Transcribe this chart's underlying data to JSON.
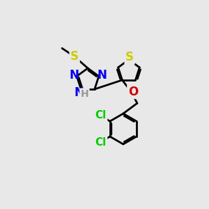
{
  "bg_color": "#e8e8e8",
  "bond_color": "#000000",
  "line_width": 2.0,
  "atom_colors": {
    "S": "#cccc00",
    "N": "#0000ee",
    "O": "#cc0000",
    "Cl": "#00cc00",
    "H": "#999999",
    "C": "#000000"
  },
  "font_size": 12,
  "fig_size": [
    3.0,
    3.0
  ],
  "dpi": 100
}
